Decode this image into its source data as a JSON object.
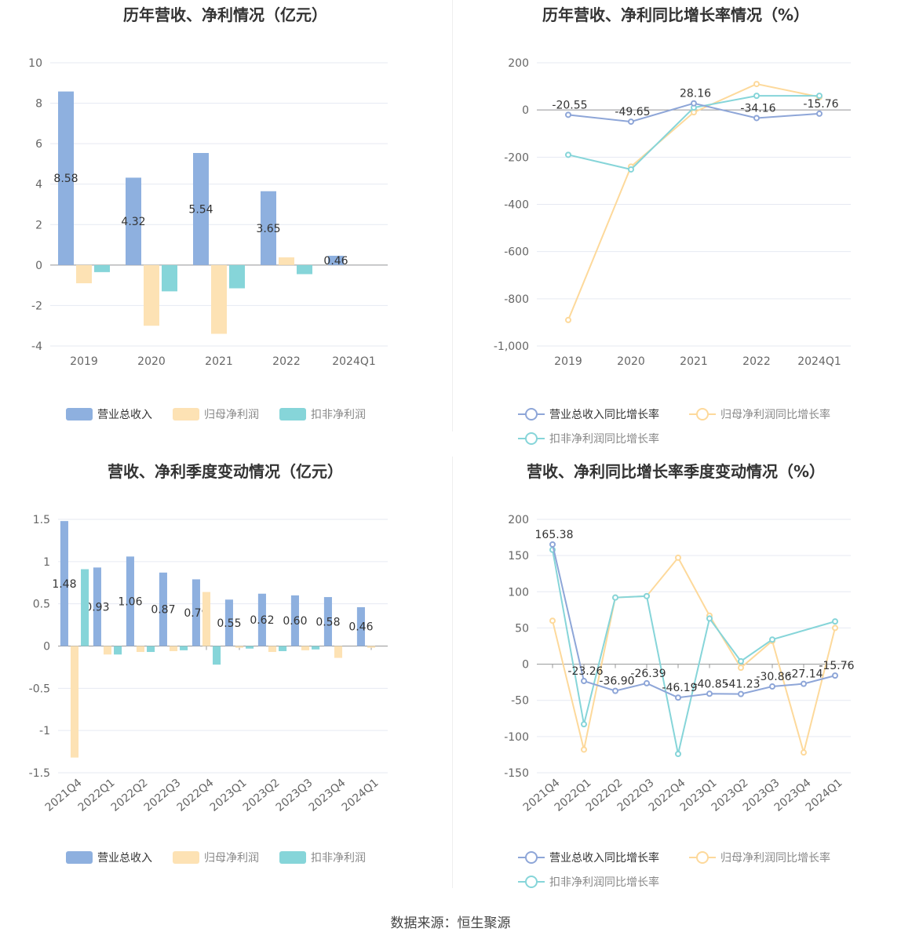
{
  "source": "数据来源：恒生聚源",
  "colors": {
    "revenue": "#8eb0df",
    "net_profit": "#fde2b4",
    "deducted": "#86d5d9",
    "rev_line": "#8ea6d8",
    "np_line": "#fdd99b",
    "ded_line": "#86d5d9"
  },
  "charts": [
    {
      "id": "annual-amount",
      "title": "历年营收、净利情况（亿元）",
      "legend": [
        "营业总收入",
        "归母净利润",
        "扣非净利润"
      ]
    },
    {
      "id": "annual-growth",
      "title": "历年营收、净利同比增长率情况（%）",
      "legend": [
        "营业总收入同比增长率",
        "归母净利润同比增长率",
        "扣非净利润同比增长率"
      ]
    },
    {
      "id": "quarter-amount",
      "title": "营收、净利季度变动情况（亿元）",
      "legend": [
        "营业总收入",
        "归母净利润",
        "扣非净利润"
      ]
    },
    {
      "id": "quarter-growth",
      "title": "营收、净利同比增长率季度变动情况（%）",
      "legend": [
        "营业总收入同比增长率",
        "归母净利润同比增长率",
        "扣非净利润同比增长率"
      ]
    }
  ],
  "chart_data": [
    {
      "type": "bar",
      "title": "历年营收、净利情况（亿元）",
      "categories": [
        "2019",
        "2020",
        "2021",
        "2022",
        "2024Q1"
      ],
      "ylim": [
        -4,
        10
      ],
      "yticks": [
        "10",
        "8",
        "6",
        "4",
        "2",
        "0",
        "-2",
        "-4"
      ],
      "series": [
        {
          "name": "营业总收入",
          "values": [
            8.58,
            4.32,
            5.54,
            3.65,
            0.46
          ],
          "labels": [
            "8.58",
            "4.32",
            "5.54",
            "3.65",
            "0.46"
          ]
        },
        {
          "name": "归母净利润",
          "values": [
            -0.9,
            -3.0,
            -3.4,
            0.38,
            0.0
          ]
        },
        {
          "name": "扣非净利润",
          "values": [
            -0.35,
            -1.3,
            -1.15,
            -0.45,
            0.0
          ]
        }
      ],
      "legend_position": "bottom"
    },
    {
      "type": "line",
      "title": "历年营收、净利同比增长率情况（%）",
      "categories": [
        "2019",
        "2020",
        "2021",
        "2022",
        "2024Q1"
      ],
      "ylim": [
        -1000,
        200
      ],
      "yticks": [
        "200",
        "0",
        "-200",
        "-400",
        "-600",
        "-800",
        "-1,000"
      ],
      "series": [
        {
          "name": "营业总收入同比增长率",
          "values": [
            -20.55,
            -49.65,
            28.16,
            -34.16,
            -15.76
          ],
          "labels": [
            "-20.55",
            "-49.65",
            "28.16",
            "-34.16",
            "-15.76"
          ]
        },
        {
          "name": "归母净利润同比增长率",
          "values": [
            -890,
            -240,
            -10,
            110,
            55
          ]
        },
        {
          "name": "扣非净利润同比增长率",
          "values": [
            -190,
            -252,
            10,
            60,
            60
          ]
        }
      ],
      "legend_position": "bottom"
    },
    {
      "type": "bar",
      "title": "营收、净利季度变动情况（亿元）",
      "categories": [
        "2021Q4",
        "2022Q1",
        "2022Q2",
        "2022Q3",
        "2022Q4",
        "2023Q1",
        "2023Q2",
        "2023Q3",
        "2023Q4",
        "2024Q1"
      ],
      "ylim": [
        -1.5,
        1.5
      ],
      "yticks": [
        "1.5",
        "1",
        "0.5",
        "0",
        "-0.5",
        "-1",
        "-1.5"
      ],
      "series": [
        {
          "name": "营业总收入",
          "values": [
            1.48,
            0.93,
            1.06,
            0.87,
            0.79,
            0.55,
            0.62,
            0.6,
            0.58,
            0.46
          ],
          "labels": [
            "1.48",
            "0.93",
            "1.06",
            "0.87",
            "0.79",
            "0.55",
            "0.62",
            "0.60",
            "0.58",
            "0.46"
          ]
        },
        {
          "name": "归母净利润",
          "values": [
            -1.32,
            -0.1,
            -0.07,
            -0.06,
            0.64,
            -0.02,
            -0.07,
            -0.05,
            -0.14,
            -0.02
          ]
        },
        {
          "name": "扣非净利润",
          "values": [
            0.91,
            -0.1,
            -0.07,
            -0.05,
            -0.22,
            -0.03,
            -0.06,
            -0.04,
            0.0,
            0.0
          ]
        }
      ],
      "legend_position": "bottom"
    },
    {
      "type": "line",
      "title": "营收、净利同比增长率季度变动情况（%）",
      "categories": [
        "2021Q4",
        "2022Q1",
        "2022Q2",
        "2022Q3",
        "2022Q4",
        "2023Q1",
        "2023Q2",
        "2023Q3",
        "2023Q4",
        "2024Q1"
      ],
      "ylim": [
        -150,
        200
      ],
      "yticks": [
        "200",
        "150",
        "100",
        "50",
        "0",
        "-50",
        "-100",
        "-150"
      ],
      "series": [
        {
          "name": "营业总收入同比增长率",
          "values": [
            165.38,
            -23.26,
            -36.9,
            -26.39,
            -46.19,
            -40.85,
            -41.23,
            -30.86,
            -27.14,
            -15.76
          ],
          "labels": [
            "165.38",
            "-23.26",
            "-36.90",
            "-26.39",
            "-46.19",
            "-40.85",
            "-41.23",
            "-30.86",
            "-27.14",
            "-15.76"
          ]
        },
        {
          "name": "归母净利润同比增长率",
          "values": [
            60,
            -118,
            92,
            94,
            147,
            67,
            -5,
            32,
            -122,
            50
          ]
        },
        {
          "name": "扣非净利润同比增长率",
          "values": [
            158,
            -83,
            92,
            94,
            -124,
            63,
            4,
            34,
            null,
            59
          ]
        }
      ],
      "legend_position": "bottom"
    }
  ]
}
